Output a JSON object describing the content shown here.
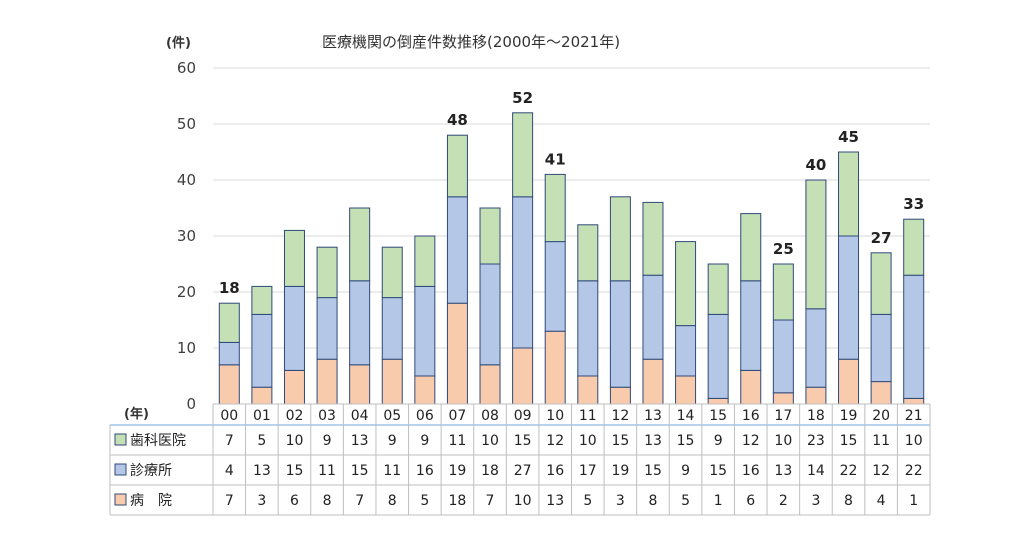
{
  "chart_data": {
    "type": "bar",
    "stacked": true,
    "title": "医療機関の倒産件数推移(2000年～2021年)",
    "ylabel": "(件)",
    "table_x_label": "(年)",
    "ylim": [
      0,
      60
    ],
    "yticks": [
      0,
      10,
      20,
      30,
      40,
      50,
      60
    ],
    "grid": true,
    "categories": [
      "00",
      "01",
      "02",
      "03",
      "04",
      "05",
      "06",
      "07",
      "08",
      "09",
      "10",
      "11",
      "12",
      "13",
      "14",
      "15",
      "16",
      "17",
      "18",
      "19",
      "20",
      "21"
    ],
    "series": [
      {
        "name": "病　院",
        "key": "hospital",
        "color": "#f8cbad",
        "values": [
          7,
          3,
          6,
          8,
          7,
          8,
          5,
          18,
          7,
          10,
          13,
          5,
          3,
          8,
          5,
          1,
          6,
          2,
          3,
          8,
          4,
          1
        ]
      },
      {
        "name": "診療所",
        "key": "clinic",
        "color": "#b4c7e7",
        "values": [
          4,
          13,
          15,
          11,
          15,
          11,
          16,
          19,
          18,
          27,
          16,
          17,
          19,
          15,
          9,
          15,
          16,
          13,
          14,
          22,
          12,
          22
        ]
      },
      {
        "name": "歯科医院",
        "key": "dental",
        "color": "#c5e0b4",
        "values": [
          7,
          5,
          10,
          9,
          13,
          9,
          9,
          11,
          10,
          15,
          12,
          10,
          15,
          13,
          15,
          9,
          12,
          10,
          23,
          15,
          11,
          10
        ]
      }
    ],
    "table_row_order": [
      "dental",
      "clinic",
      "hospital"
    ],
    "total_labels": [
      {
        "category": "00",
        "value": 18
      },
      {
        "category": "07",
        "value": 48
      },
      {
        "category": "09",
        "value": 52
      },
      {
        "category": "10",
        "value": 41
      },
      {
        "category": "17",
        "value": 25
      },
      {
        "category": "18",
        "value": 40
      },
      {
        "category": "19",
        "value": 45
      },
      {
        "category": "20",
        "value": 27
      },
      {
        "category": "21",
        "value": 33
      }
    ],
    "bar_outline_color": "#2f4a7a"
  }
}
